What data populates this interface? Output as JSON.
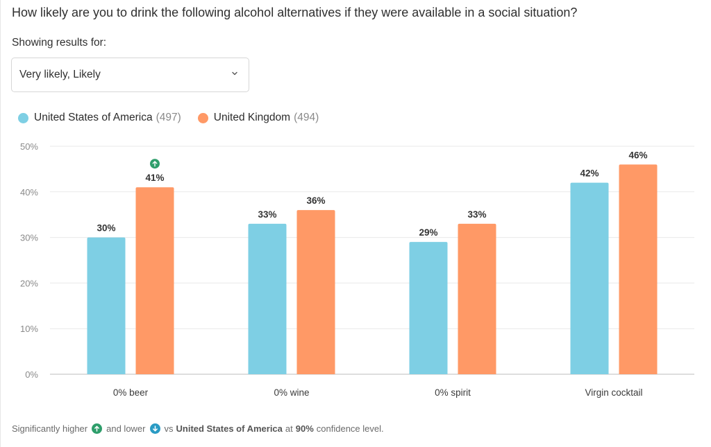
{
  "question": "How likely are you to drink the following alcohol alternatives if they were available in a social situation?",
  "filter": {
    "label": "Showing results for:",
    "selected": "Very likely, Likely",
    "icon": "chevron-down-icon"
  },
  "legend": [
    {
      "name": "United States of America",
      "count": "(497)",
      "color": "#7ecfe4"
    },
    {
      "name": "United Kingdom",
      "count": "(494)",
      "color": "#ff9966"
    }
  ],
  "chart_data": {
    "type": "bar",
    "title": "",
    "xlabel": "",
    "ylabel": "",
    "categories": [
      "0% beer",
      "0% wine",
      "0% spirit",
      "Virgin cocktail"
    ],
    "series": [
      {
        "name": "United States of America",
        "values": [
          30,
          33,
          29,
          42
        ],
        "labels": [
          "30%",
          "33%",
          "29%",
          "42%"
        ],
        "color": "#7ecfe4"
      },
      {
        "name": "United Kingdom",
        "values": [
          41,
          36,
          33,
          46
        ],
        "labels": [
          "41%",
          "36%",
          "33%",
          "46%"
        ],
        "color": "#ff9966"
      }
    ],
    "ylim": [
      0,
      50
    ],
    "yticks": [
      0,
      10,
      20,
      30,
      40,
      50
    ],
    "ytick_labels": [
      "0%",
      "10%",
      "20%",
      "30%",
      "40%",
      "50%"
    ],
    "grid": true,
    "legend_position": "top-left",
    "annotations": [
      {
        "category": "0% beer",
        "series": "United Kingdom",
        "type": "significantly-higher",
        "icon": "arrow-up-icon",
        "color": "#2e9e6b"
      }
    ]
  },
  "footer": {
    "text1": "Significantly higher",
    "text2": "and lower",
    "text3": "vs",
    "baseline": "United States of America",
    "text4": "at",
    "confidence": "90%",
    "text5": "confidence level.",
    "higher_color": "#2e9e6b",
    "lower_color": "#2a9bc4"
  }
}
